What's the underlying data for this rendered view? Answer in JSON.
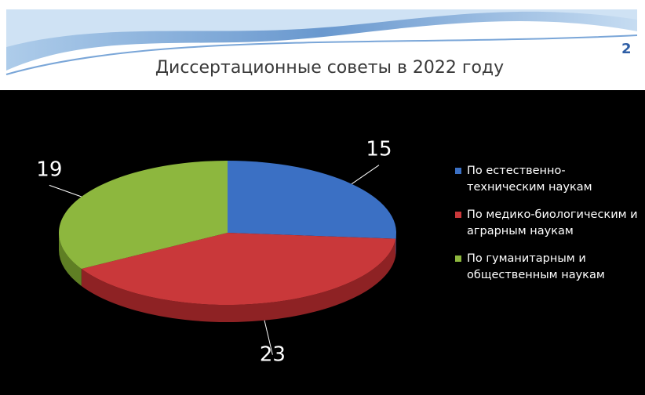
{
  "title": "Диссертационные  советы  в 2022 году",
  "slide_number": "2",
  "chart_data": {
    "type": "pie",
    "categories": [
      "По естественно-техническим  наукам",
      "По медико-биологическим  и аграрным наукам",
      "По гуманитарным и общественным  наукам"
    ],
    "values": [
      15,
      23,
      19
    ],
    "colors": [
      "#3b70c4",
      "#c9383a",
      "#8db73e"
    ],
    "side_colors": [
      "#284f8f",
      "#8e2224",
      "#5f7f24"
    ]
  }
}
